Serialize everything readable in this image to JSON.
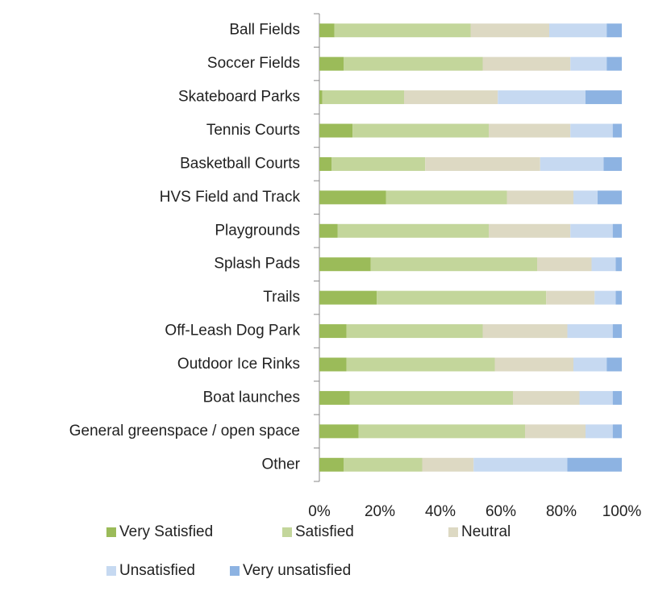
{
  "chart_data": {
    "type": "stacked_bar_horizontal",
    "categories": [
      "Ball Fields",
      "Soccer Fields",
      "Skateboard Parks",
      "Tennis Courts",
      "Basketball Courts",
      "HVS Field and Track",
      "Playgrounds",
      "Splash Pads",
      "Trails",
      "Off-Leash Dog Park",
      "Outdoor Ice Rinks",
      "Boat launches",
      "General greenspace / open space",
      "Other"
    ],
    "series": [
      {
        "name": "Very Satisfied",
        "color": "#9bbb59",
        "values": [
          5,
          8,
          1,
          11,
          4,
          22,
          6,
          17,
          19,
          9,
          9,
          10,
          13,
          8
        ]
      },
      {
        "name": "Satisfied",
        "color": "#c3d69b",
        "values": [
          45,
          46,
          27,
          45,
          31,
          40,
          50,
          55,
          56,
          45,
          49,
          54,
          55,
          26
        ]
      },
      {
        "name": "Neutral",
        "color": "#ddd9c3",
        "values": [
          26,
          29,
          31,
          27,
          38,
          22,
          27,
          18,
          16,
          28,
          26,
          22,
          20,
          17
        ]
      },
      {
        "name": "Unsatisfied",
        "color": "#c6d9f1",
        "values": [
          19,
          12,
          29,
          14,
          21,
          8,
          14,
          8,
          7,
          15,
          11,
          11,
          9,
          31
        ]
      },
      {
        "name": "Very unsatisfied",
        "color": "#8db3e2",
        "values": [
          5,
          5,
          12,
          3,
          6,
          8,
          3,
          2,
          2,
          3,
          5,
          3,
          3,
          18
        ]
      }
    ],
    "xlim": [
      0,
      100
    ],
    "xticks": [
      {
        "value": 0,
        "label": "0%"
      },
      {
        "value": 20,
        "label": "20%"
      },
      {
        "value": 40,
        "label": "40%"
      },
      {
        "value": 60,
        "label": "60%"
      },
      {
        "value": 80,
        "label": "80%"
      },
      {
        "value": 100,
        "label": "100%"
      }
    ],
    "grid": false
  }
}
